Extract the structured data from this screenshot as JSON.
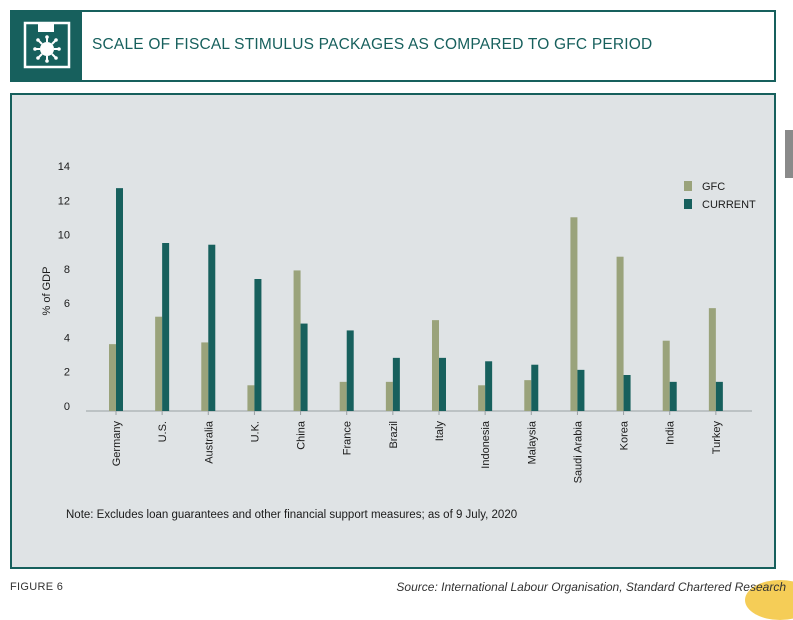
{
  "header": {
    "title": "SCALE OF FISCAL STIMULUS PACKAGES AS COMPARED TO GFC PERIOD",
    "icon": "virus-icon"
  },
  "chart_data": {
    "type": "bar",
    "title": "",
    "ylabel": "% of GDP",
    "xlabel": "",
    "ylim": [
      0,
      14
    ],
    "yticks": [
      0,
      2,
      4,
      6,
      8,
      10,
      12,
      14
    ],
    "categories": [
      "Germany",
      "U.S.",
      "Australia",
      "U.K.",
      "China",
      "France",
      "Brazil",
      "Italy",
      "Indonesia",
      "Malaysia",
      "Saudi Arabia",
      "Korea",
      "India",
      "Turkey"
    ],
    "series": [
      {
        "name": "GFC",
        "color": "#9aa37b",
        "values": [
          3.9,
          5.5,
          4.0,
          1.5,
          8.2,
          1.7,
          1.7,
          5.3,
          1.5,
          1.8,
          11.3,
          9.0,
          4.1,
          6.0
        ]
      },
      {
        "name": "CURRENT",
        "color": "#17605d",
        "values": [
          13.0,
          9.8,
          9.7,
          7.7,
          5.1,
          4.7,
          3.1,
          3.1,
          2.9,
          2.7,
          2.4,
          2.1,
          1.7,
          1.7
        ]
      }
    ],
    "legend": "top-right",
    "grid": false
  },
  "footer": {
    "note": "Note: Excludes loan guarantees and other financial support measures; as of 9 July, 2020",
    "figure_label": "FIGURE 6",
    "source": "Source: International Labour Organisation, Standard Chartered Research"
  }
}
